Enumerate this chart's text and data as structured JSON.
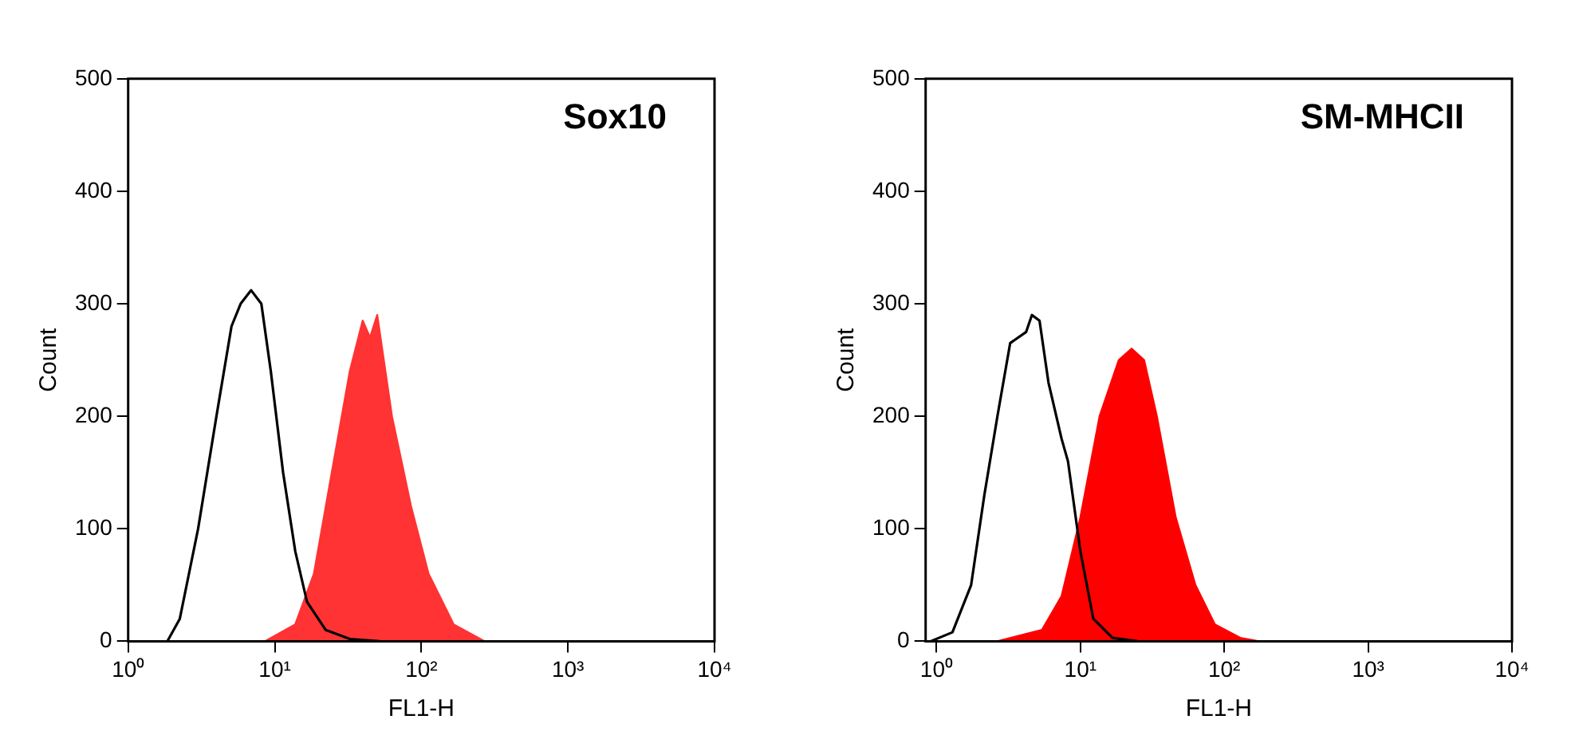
{
  "chart_data": [
    {
      "type": "line",
      "title": "Sox10",
      "xlabel": "FL1-H",
      "ylabel": "Count",
      "log": "x",
      "grid": false,
      "legend": false,
      "xlim": [
        1,
        10000
      ],
      "ylim": [
        0,
        500
      ],
      "xticks": [
        {
          "value": 1,
          "label": "10⁰"
        },
        {
          "value": 10,
          "label": "10¹"
        },
        {
          "value": 100,
          "label": "10²"
        },
        {
          "value": 1000,
          "label": "10³"
        },
        {
          "value": 10000,
          "label": "10⁴"
        }
      ],
      "yticks": [
        0,
        100,
        200,
        300,
        400,
        500
      ],
      "series": [
        {
          "type": "line",
          "color": "#000000",
          "x": [
            1.85,
            2.25,
            3.0,
            4.0,
            5.07,
            5.85,
            6.9,
            8.1,
            9.4,
            11.4,
            13.8,
            16.6,
            22.3,
            32.5,
            52
          ],
          "values": [
            0,
            20,
            100,
            200,
            280,
            300,
            312,
            300,
            240,
            150,
            80,
            35,
            10,
            2,
            0
          ]
        },
        {
          "type": "area",
          "color": "#ff3333",
          "x": [
            8.6,
            13.8,
            18.5,
            24.5,
            32.5,
            39.8,
            44.7,
            50,
            63,
            85,
            112,
            166,
            269
          ],
          "values": [
            0,
            15,
            60,
            150,
            240,
            285,
            270,
            290,
            200,
            120,
            60,
            15,
            0
          ]
        }
      ]
    },
    {
      "type": "line",
      "title": "SM-MHCII",
      "xlabel": "FL1-H",
      "ylabel": "Count",
      "log": "x",
      "grid": false,
      "legend": false,
      "xlim": [
        0.84,
        10000
      ],
      "ylim": [
        0,
        500
      ],
      "xticks": [
        {
          "value": 1,
          "label": "10⁰"
        },
        {
          "value": 10,
          "label": "10¹"
        },
        {
          "value": 100,
          "label": "10²"
        },
        {
          "value": 1000,
          "label": "10³"
        },
        {
          "value": 10000,
          "label": "10⁴"
        }
      ],
      "yticks": [
        0,
        100,
        200,
        300,
        400,
        500
      ],
      "series": [
        {
          "type": "line",
          "color": "#000000",
          "x": [
            0.91,
            1.29,
            1.74,
            2.15,
            2.65,
            3.25,
            4.2,
            4.6,
            5.2,
            6.0,
            7.4,
            8.2,
            10,
            12.3,
            16.7,
            25
          ],
          "values": [
            0,
            8,
            50,
            130,
            200,
            265,
            275,
            290,
            285,
            230,
            180,
            160,
            80,
            20,
            3,
            0
          ]
        },
        {
          "type": "area",
          "color": "#ff0000",
          "x": [
            2.65,
            5.4,
            7.4,
            10,
            13.6,
            18.5,
            22.7,
            27.7,
            34,
            46,
            63,
            86,
            129,
            174
          ],
          "values": [
            0,
            10,
            40,
            110,
            200,
            250,
            260,
            250,
            200,
            110,
            50,
            15,
            3,
            0
          ]
        }
      ]
    }
  ]
}
